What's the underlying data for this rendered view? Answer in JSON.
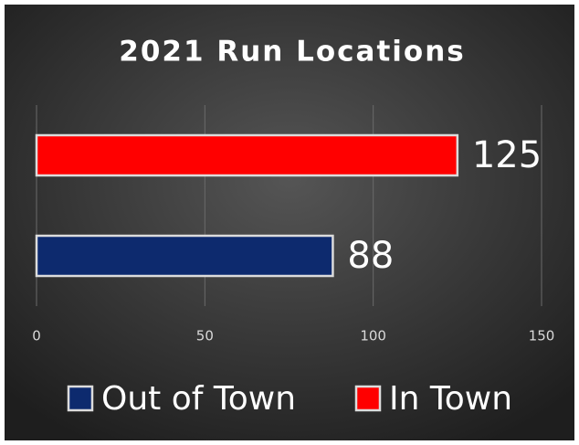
{
  "chart_data": {
    "type": "bar",
    "orientation": "horizontal",
    "title": "2021 Run Locations",
    "categories": [
      null
    ],
    "series": [
      {
        "name": "Out of Town",
        "color": "#0d2a6e",
        "values": [
          88
        ]
      },
      {
        "name": "In Town",
        "color": "#ff0000",
        "values": [
          125
        ]
      }
    ],
    "xlim": [
      0,
      150
    ],
    "xticks": [
      0,
      50,
      100,
      150
    ],
    "grid": true,
    "legend": "bottom"
  }
}
